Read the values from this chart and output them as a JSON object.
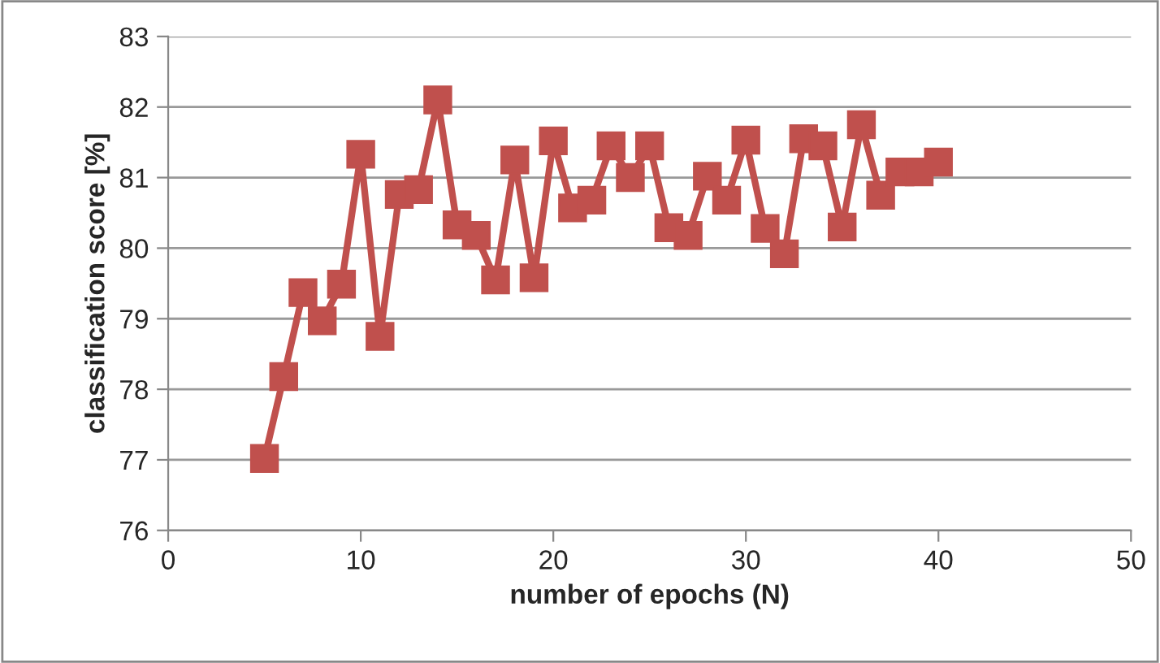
{
  "chart_data": {
    "type": "line",
    "xlabel": "number of epochs (N)",
    "ylabel": "classification score [%]",
    "x": [
      5,
      6,
      7,
      8,
      9,
      10,
      11,
      12,
      13,
      14,
      15,
      16,
      17,
      18,
      19,
      20,
      21,
      22,
      23,
      24,
      25,
      26,
      27,
      28,
      29,
      30,
      31,
      32,
      33,
      34,
      35,
      36,
      37,
      38,
      39,
      40
    ],
    "series": [
      {
        "color": "#c0504d",
        "values": [
          77.02,
          78.18,
          79.37,
          78.97,
          79.49,
          81.33,
          78.75,
          80.76,
          80.83,
          82.1,
          80.33,
          80.18,
          79.55,
          81.25,
          79.58,
          81.52,
          80.57,
          80.68,
          81.45,
          81.0,
          81.45,
          80.29,
          80.18,
          81.02,
          80.68,
          81.53,
          80.28,
          79.92,
          81.55,
          81.45,
          80.3,
          81.75,
          80.75,
          81.08,
          81.08,
          81.22
        ]
      }
    ],
    "xlim": [
      0,
      50
    ],
    "xticks": [
      0,
      10,
      20,
      30,
      40,
      50
    ],
    "ylim": [
      76,
      83
    ],
    "yticks": [
      76,
      77,
      78,
      79,
      80,
      81,
      82,
      83
    ],
    "grid": "y",
    "marker": "square",
    "line_style": "solid",
    "legend": false
  }
}
